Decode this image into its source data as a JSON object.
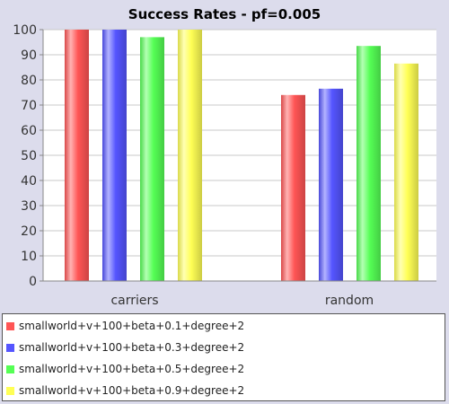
{
  "chart_data": {
    "type": "bar",
    "title": "Success Rates - pf=0.005",
    "xlabel": "",
    "ylabel": "",
    "categories": [
      "carriers",
      "random"
    ],
    "ylim": [
      0,
      100
    ],
    "yticks": [
      "0",
      "10",
      "20",
      "30",
      "40",
      "50",
      "60",
      "70",
      "80",
      "90",
      "100"
    ],
    "grid": true,
    "legend_position": "bottom",
    "series": [
      {
        "name": "smallworld+v+100+beta+0.1+degree+2",
        "color": "#ff5555",
        "values": [
          100,
          74
        ]
      },
      {
        "name": "smallworld+v+100+beta+0.3+degree+2",
        "color": "#5555ff",
        "values": [
          100,
          76.5
        ]
      },
      {
        "name": "smallworld+v+100+beta+0.5+degree+2",
        "color": "#55ff55",
        "values": [
          97,
          93.5
        ]
      },
      {
        "name": "smallworld+v+100+beta+0.9+degree+2",
        "color": "#ffff55",
        "values": [
          100,
          86.5
        ]
      }
    ]
  }
}
